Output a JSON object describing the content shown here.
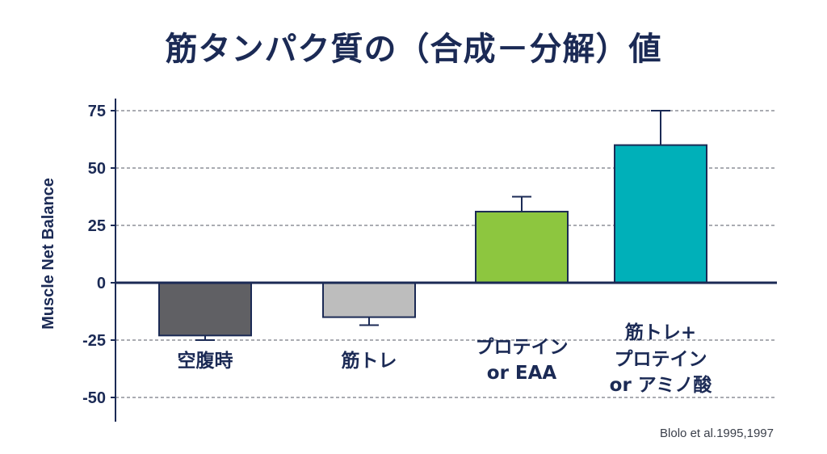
{
  "title": "筋タンパク質の（合成－分解）値",
  "citation": "Blolo et al.1995,1997",
  "colors": {
    "axis": "#1b2a55",
    "grid": "#555a66",
    "bar_outline": "#1b2a55"
  },
  "chart_data": {
    "type": "bar",
    "title": "筋タンパク質の（合成－分解）値",
    "xlabel": "",
    "ylabel": "Muscle Net Balance",
    "ylim": [
      -60,
      80
    ],
    "yticks": [
      75,
      50,
      25,
      0,
      -25,
      -50
    ],
    "ytick_labels": [
      "75",
      "50",
      "25",
      "0",
      "-25",
      "-50"
    ],
    "grid": "horizontal dashed",
    "categories": [
      {
        "lines": [
          "空腹時"
        ]
      },
      {
        "lines": [
          "筋トレ"
        ]
      },
      {
        "lines": [
          "プロテイン",
          "or EAA"
        ]
      },
      {
        "lines": [
          "筋トレ+",
          "プロテイン",
          "or アミノ酸"
        ]
      }
    ],
    "values": [
      -23,
      -15,
      31,
      60
    ],
    "error_bars": [
      2,
      3.5,
      6.5,
      15
    ],
    "bar_colors": [
      "#606064",
      "#bdbdbd",
      "#8dc63f",
      "#00b0b9"
    ]
  }
}
